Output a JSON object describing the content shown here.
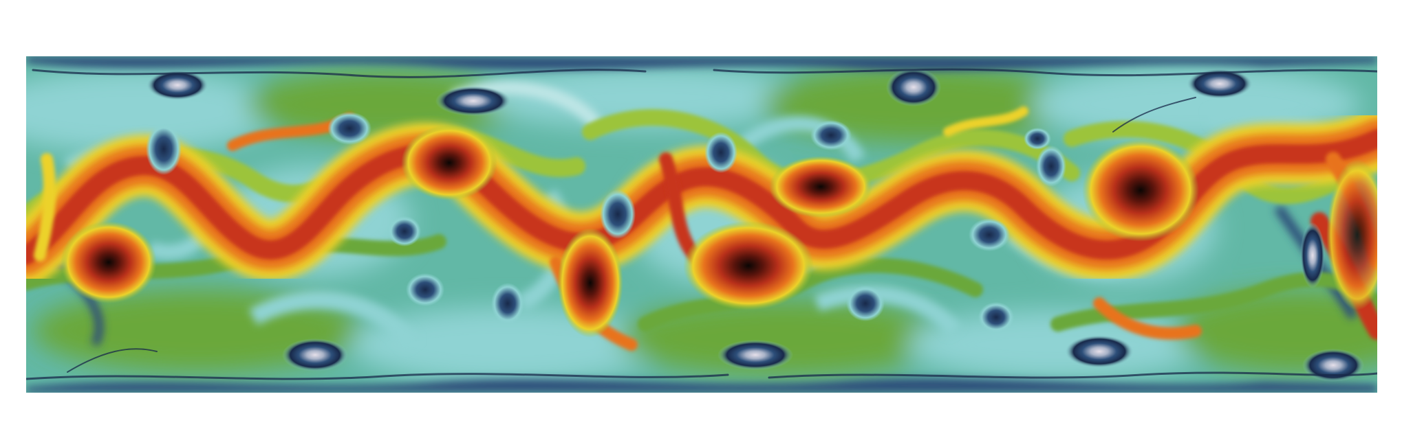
{
  "figure": {
    "colors": {
      "background": "#ffffff",
      "base": "#62b8a6",
      "cyan": "#8fd3d3",
      "light_cyan": "#bfe6e6",
      "blue": "#2d4f7a",
      "navy": "#18294a",
      "pale": "#d9d4e0",
      "green": "#6aa83a",
      "light_green": "#9cc43a",
      "yellow": "#ecd22a",
      "orange": "#e8731d",
      "red": "#c8341a",
      "dark_red": "#7a1c12",
      "black": "#1a0a08"
    }
  }
}
